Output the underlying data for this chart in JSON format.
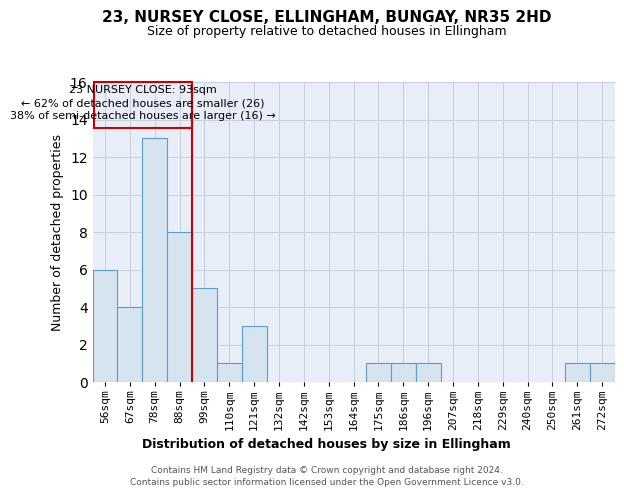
{
  "title": "23, NURSEY CLOSE, ELLINGHAM, BUNGAY, NR35 2HD",
  "subtitle": "Size of property relative to detached houses in Ellingham",
  "xlabel": "Distribution of detached houses by size in Ellingham",
  "ylabel": "Number of detached properties",
  "categories": [
    "56sqm",
    "67sqm",
    "78sqm",
    "88sqm",
    "99sqm",
    "110sqm",
    "121sqm",
    "132sqm",
    "142sqm",
    "153sqm",
    "164sqm",
    "175sqm",
    "186sqm",
    "196sqm",
    "207sqm",
    "218sqm",
    "229sqm",
    "240sqm",
    "250sqm",
    "261sqm",
    "272sqm"
  ],
  "values": [
    6,
    4,
    13,
    8,
    5,
    1,
    3,
    0,
    0,
    0,
    0,
    1,
    1,
    1,
    0,
    0,
    0,
    0,
    0,
    1,
    1
  ],
  "bar_color": "#d6e4f0",
  "bar_edge_color": "#5b9bd5",
  "grid_color": "#c8d0dc",
  "background_color": "#e8eef8",
  "annotation_box_color": "#cc0000",
  "vline_color": "#cc0000",
  "vline_bar_index": 3,
  "annotation_text_line1": "23 NURSEY CLOSE: 93sqm",
  "annotation_text_line2": "← 62% of detached houses are smaller (26)",
  "annotation_text_line3": "38% of semi-detached houses are larger (16) →",
  "footer_line1": "Contains HM Land Registry data © Crown copyright and database right 2024.",
  "footer_line2": "Contains public sector information licensed under the Open Government Licence v3.0.",
  "ylim": [
    0,
    16
  ],
  "yticks": [
    0,
    2,
    4,
    6,
    8,
    10,
    12,
    14,
    16
  ],
  "title_fontsize": 11,
  "subtitle_fontsize": 9,
  "ylabel_fontsize": 9,
  "xlabel_fontsize": 9,
  "tick_fontsize": 8,
  "annotation_fontsize": 8,
  "footer_fontsize": 6.5
}
